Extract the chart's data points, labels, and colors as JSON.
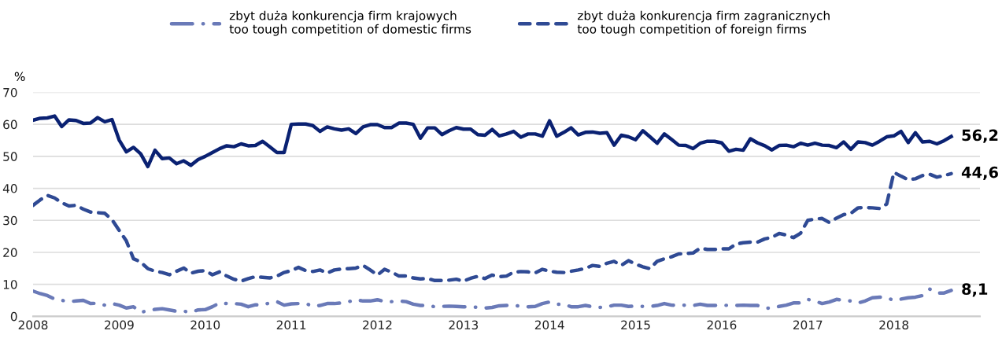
{
  "chart_data": {
    "type": "line",
    "ylabel": "%",
    "ylim": [
      0,
      70
    ],
    "yticks": [
      0,
      10,
      20,
      30,
      40,
      50,
      60,
      70
    ],
    "xlim": [
      "2008-01",
      "2019-01"
    ],
    "xticks": [
      {
        "value": "2008-01",
        "label": "2008"
      },
      {
        "value": "2009-01",
        "label": "2009"
      },
      {
        "value": "2010-01",
        "label": "2010"
      },
      {
        "value": "2011-01",
        "label": "2011"
      },
      {
        "value": "2012-01",
        "label": "2012"
      },
      {
        "value": "2013-01",
        "label": "2013"
      },
      {
        "value": "2014-01",
        "label": "2014"
      },
      {
        "value": "2015-01",
        "label": "2015"
      },
      {
        "value": "2016-01",
        "label": "2016"
      },
      {
        "value": "2017-01",
        "label": "2017"
      },
      {
        "value": "2018-01",
        "label": "2018"
      }
    ],
    "grid": "y",
    "legend": "top",
    "x": [
      "2008-01",
      "2008-02",
      "2008-03",
      "2008-04",
      "2008-05",
      "2008-06",
      "2008-07",
      "2008-08",
      "2008-09",
      "2008-10",
      "2008-11",
      "2008-12",
      "2009-01",
      "2009-02",
      "2009-03",
      "2009-04",
      "2009-05",
      "2009-06",
      "2009-07",
      "2009-08",
      "2009-09",
      "2009-10",
      "2009-11",
      "2009-12",
      "2010-01",
      "2010-02",
      "2010-03",
      "2010-04",
      "2010-05",
      "2010-06",
      "2010-07",
      "2010-08",
      "2010-09",
      "2010-10",
      "2010-11",
      "2010-12",
      "2011-01",
      "2011-02",
      "2011-03",
      "2011-04",
      "2011-05",
      "2011-06",
      "2011-07",
      "2011-08",
      "2011-09",
      "2011-10",
      "2011-11",
      "2011-12",
      "2012-01",
      "2012-02",
      "2012-03",
      "2012-04",
      "2012-05",
      "2012-06",
      "2012-07",
      "2012-08",
      "2012-09",
      "2012-10",
      "2012-11",
      "2012-12",
      "2013-01",
      "2013-02",
      "2013-03",
      "2013-04",
      "2013-05",
      "2013-06",
      "2013-07",
      "2013-08",
      "2013-09",
      "2013-10",
      "2013-11",
      "2013-12",
      "2014-01",
      "2014-02",
      "2014-03",
      "2014-04",
      "2014-05",
      "2014-06",
      "2014-07",
      "2014-08",
      "2014-09",
      "2014-10",
      "2014-11",
      "2014-12",
      "2015-01",
      "2015-02",
      "2015-03",
      "2015-04",
      "2015-05",
      "2015-06",
      "2015-07",
      "2015-08",
      "2015-09",
      "2015-10",
      "2015-11",
      "2015-12",
      "2016-01",
      "2016-02",
      "2016-03",
      "2016-04",
      "2016-05",
      "2016-06",
      "2016-07",
      "2016-08",
      "2016-09",
      "2016-10",
      "2016-11",
      "2016-12",
      "2017-01",
      "2017-02",
      "2017-03",
      "2017-04",
      "2017-05",
      "2017-06",
      "2017-07",
      "2017-08",
      "2017-09",
      "2017-10",
      "2017-11",
      "2017-12",
      "2018-01",
      "2018-02",
      "2018-03",
      "2018-04",
      "2018-05",
      "2018-06",
      "2018-07",
      "2018-08",
      "2018-09"
    ],
    "series": [
      {
        "name": "zbyt duża konkurencja firm krajowych\ntoo tough competition of domestic firms",
        "color": "#6a7ab8",
        "line_style": "dashdot",
        "values": [
          7.9,
          7.1,
          6.5,
          5.4,
          5.0,
          4.6,
          4.8,
          5.0,
          4.0,
          4.1,
          3.5,
          4.0,
          3.5,
          2.6,
          3.0,
          1.3,
          1.7,
          2.2,
          2.4,
          2.0,
          1.6,
          1.6,
          1.3,
          2.0,
          2.1,
          3.0,
          4.2,
          4.0,
          4.0,
          3.8,
          3.0,
          3.6,
          3.6,
          4.2,
          4.6,
          3.5,
          3.9,
          4.0,
          4.0,
          3.2,
          3.4,
          4.0,
          4.0,
          4.2,
          4.6,
          5.2,
          4.8,
          4.8,
          5.2,
          4.6,
          4.6,
          4.8,
          4.6,
          3.8,
          3.4,
          3.4,
          3.0,
          3.1,
          3.2,
          3.1,
          3.0,
          3.0,
          2.8,
          2.6,
          2.8,
          3.3,
          3.4,
          3.5,
          3.1,
          3.0,
          3.1,
          4.0,
          4.5,
          3.8,
          3.8,
          3.0,
          3.0,
          3.4,
          3.0,
          2.8,
          3.0,
          3.5,
          3.5,
          3.1,
          3.2,
          3.1,
          3.1,
          3.4,
          4.0,
          3.5,
          3.4,
          3.5,
          3.4,
          3.8,
          3.4,
          3.4,
          3.5,
          3.4,
          3.4,
          3.5,
          3.4,
          3.4,
          2.6,
          2.5,
          3.1,
          3.5,
          4.2,
          4.2,
          5.3,
          4.8,
          4.0,
          4.5,
          5.3,
          5.0,
          4.8,
          4.2,
          4.8,
          5.8,
          6.0,
          5.8,
          5.0,
          5.4,
          5.8,
          6.0,
          6.5,
          8.5,
          7.3,
          7.3,
          8.1
        ]
      },
      {
        "name": "zbyt duża konkurencja firm zagranicznych\ntoo tough competition of foreign firms",
        "color": "#2f4a94",
        "line_style": "dashed",
        "values": [
          34.7,
          36.4,
          37.8,
          37.0,
          35.5,
          34.5,
          34.7,
          33.5,
          32.6,
          32.4,
          32.2,
          30.2,
          26.9,
          23.6,
          18.0,
          17.0,
          14.9,
          14.1,
          13.7,
          13.0,
          14.1,
          15.1,
          13.5,
          14.1,
          14.3,
          13.0,
          13.9,
          12.6,
          11.6,
          11.0,
          11.8,
          12.4,
          12.2,
          12.0,
          12.6,
          13.7,
          14.3,
          15.3,
          14.3,
          14.0,
          14.5,
          13.5,
          14.5,
          14.8,
          14.9,
          15.1,
          15.9,
          14.5,
          12.9,
          14.7,
          13.8,
          12.6,
          12.6,
          12.0,
          11.7,
          11.8,
          11.2,
          11.2,
          11.3,
          11.6,
          11.0,
          11.9,
          12.5,
          11.8,
          12.9,
          12.4,
          12.6,
          13.8,
          14.0,
          13.9,
          13.6,
          14.7,
          14.1,
          13.8,
          13.7,
          14.1,
          14.5,
          15.0,
          15.9,
          15.6,
          16.6,
          17.2,
          15.9,
          17.4,
          16.3,
          15.5,
          14.9,
          17.2,
          18.0,
          18.6,
          19.5,
          19.6,
          19.8,
          21.3,
          20.9,
          20.9,
          21.1,
          21.1,
          22.6,
          23.0,
          23.2,
          23.2,
          24.2,
          24.7,
          25.9,
          25.4,
          24.6,
          26.0,
          30.0,
          30.4,
          30.6,
          29.3,
          30.7,
          31.8,
          32.2,
          33.9,
          34.0,
          33.9,
          33.7,
          35.1,
          45.0,
          43.8,
          42.7,
          43.0,
          44.0,
          44.4,
          43.5,
          44.0,
          44.6
        ]
      },
      {
        "color": "#0a2172",
        "line_style": "solid",
        "values": [
          61.3,
          61.9,
          62.0,
          62.6,
          59.3,
          61.4,
          61.2,
          60.3,
          60.4,
          62.1,
          60.8,
          61.5,
          55.1,
          51.4,
          52.8,
          50.8,
          46.8,
          51.9,
          49.3,
          49.5,
          47.7,
          48.6,
          47.2,
          49.0,
          50.0,
          51.2,
          52.4,
          53.3,
          53.0,
          53.9,
          53.3,
          53.4,
          54.7,
          53.0,
          51.2,
          51.2,
          60.0,
          60.1,
          60.1,
          59.6,
          57.8,
          59.2,
          58.6,
          58.2,
          58.6,
          57.1,
          59.2,
          59.9,
          59.9,
          59.0,
          59.0,
          60.4,
          60.4,
          60.0,
          55.7,
          58.9,
          58.9,
          56.8,
          58.0,
          59.0,
          58.5,
          58.5,
          56.8,
          56.6,
          58.4,
          56.4,
          57.0,
          57.8,
          56.0,
          57.0,
          57.0,
          56.3,
          61.1,
          56.3,
          57.5,
          58.9,
          56.7,
          57.5,
          57.6,
          57.2,
          57.4,
          53.5,
          56.6,
          56.1,
          55.2,
          58.0,
          56.1,
          54.1,
          57.0,
          55.3,
          53.5,
          53.4,
          52.4,
          54.1,
          54.7,
          54.7,
          54.2,
          51.6,
          52.2,
          51.9,
          55.5,
          54.2,
          53.3,
          52.0,
          53.4,
          53.5,
          53.0,
          54.1,
          53.5,
          54.1,
          53.5,
          53.4,
          52.7,
          54.5,
          52.2,
          54.5,
          54.3,
          53.5,
          54.7,
          56.1,
          56.4,
          57.8,
          54.3,
          57.4,
          54.5,
          54.7,
          53.9,
          54.9,
          56.2
        ]
      }
    ],
    "annotations": [
      {
        "text": "56,2",
        "x": "2018-09",
        "y": 56.2
      },
      {
        "text": "44,6",
        "x": "2018-09",
        "y": 44.6
      },
      {
        "text": "8,1",
        "x": "2018-09",
        "y": 8.1
      }
    ]
  }
}
